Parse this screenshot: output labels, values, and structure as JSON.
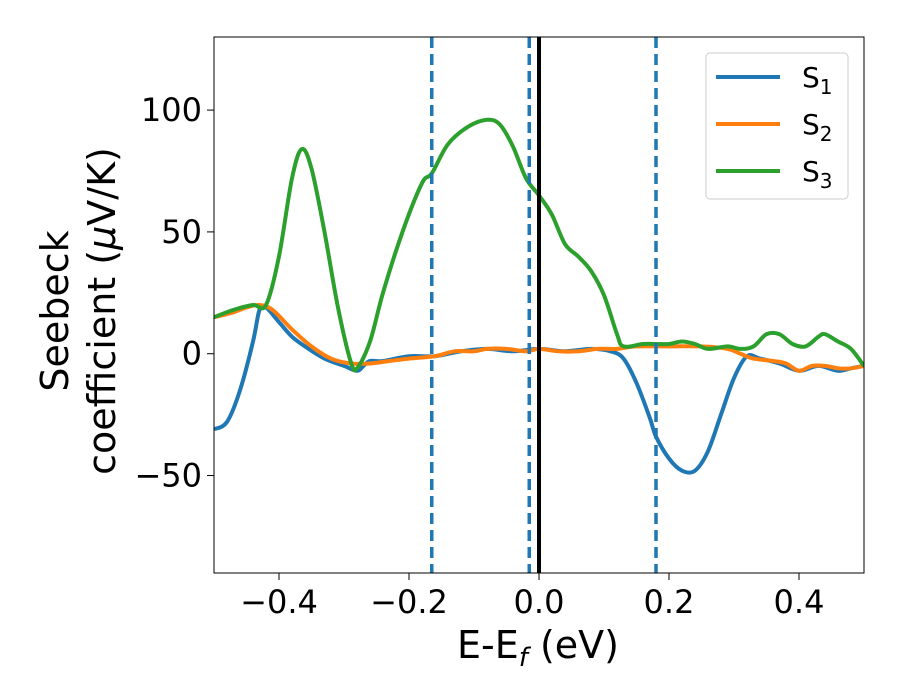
{
  "chart_data": {
    "type": "line",
    "xlabel": "E-E",
    "xlabel_sub": "f",
    "xlabel_unit": "(eV)",
    "ylabel_line1": "Seebeck",
    "ylabel_line2_prefix": "coefficient  (",
    "ylabel_mu": "μ",
    "ylabel_line2_suffix": "V/K)",
    "xlim": [
      -0.5,
      0.5
    ],
    "ylim": [
      -90,
      130
    ],
    "xticks": [
      -0.4,
      -0.2,
      0.0,
      0.2,
      0.4
    ],
    "xtick_labels": [
      "−0.4",
      "−0.2",
      "0.0",
      "0.2",
      "0.4"
    ],
    "yticks": [
      -50,
      0,
      50,
      100
    ],
    "ytick_labels": [
      "−50",
      "0",
      "50",
      "100"
    ],
    "grid": false,
    "legend_position": "top-right",
    "vertical_lines": [
      {
        "x": -0.165,
        "style": "dashed",
        "color": "#1f77b4"
      },
      {
        "x": -0.015,
        "style": "dashed",
        "color": "#1f77b4"
      },
      {
        "x": 0.18,
        "style": "dashed",
        "color": "#1f77b4"
      },
      {
        "x": 0.0,
        "style": "solid",
        "color": "#000000"
      }
    ],
    "series": [
      {
        "name": "S",
        "sub": "1",
        "color": "#1f77b4",
        "points": [
          [
            -0.5,
            -31
          ],
          [
            -0.48,
            -28
          ],
          [
            -0.46,
            -15
          ],
          [
            -0.44,
            5
          ],
          [
            -0.43,
            18
          ],
          [
            -0.42,
            19
          ],
          [
            -0.4,
            13
          ],
          [
            -0.38,
            7
          ],
          [
            -0.36,
            3
          ],
          [
            -0.33,
            -2
          ],
          [
            -0.3,
            -5
          ],
          [
            -0.28,
            -7
          ],
          [
            -0.27,
            -5
          ],
          [
            -0.26,
            -3
          ],
          [
            -0.24,
            -3
          ],
          [
            -0.2,
            -1
          ],
          [
            -0.16,
            -1
          ],
          [
            -0.12,
            1
          ],
          [
            -0.08,
            2
          ],
          [
            -0.04,
            1
          ],
          [
            0.0,
            2
          ],
          [
            0.04,
            1
          ],
          [
            0.08,
            2
          ],
          [
            0.11,
            1
          ],
          [
            0.13,
            -2
          ],
          [
            0.15,
            -12
          ],
          [
            0.17,
            -26
          ],
          [
            0.18,
            -34
          ],
          [
            0.2,
            -43
          ],
          [
            0.22,
            -48
          ],
          [
            0.24,
            -48
          ],
          [
            0.26,
            -40
          ],
          [
            0.28,
            -25
          ],
          [
            0.3,
            -10
          ],
          [
            0.32,
            -1
          ],
          [
            0.34,
            -2
          ],
          [
            0.37,
            -4
          ],
          [
            0.4,
            -7
          ],
          [
            0.43,
            -5
          ],
          [
            0.46,
            -7
          ],
          [
            0.48,
            -6
          ],
          [
            0.5,
            -5
          ]
        ]
      },
      {
        "name": "S",
        "sub": "2",
        "color": "#ff7f0e",
        "points": [
          [
            -0.5,
            15
          ],
          [
            -0.47,
            17
          ],
          [
            -0.45,
            19
          ],
          [
            -0.43,
            20
          ],
          [
            -0.41,
            18
          ],
          [
            -0.38,
            10
          ],
          [
            -0.35,
            3
          ],
          [
            -0.32,
            -2
          ],
          [
            -0.29,
            -4
          ],
          [
            -0.26,
            -4
          ],
          [
            -0.23,
            -3
          ],
          [
            -0.2,
            -2
          ],
          [
            -0.16,
            -1
          ],
          [
            -0.13,
            1
          ],
          [
            -0.1,
            1
          ],
          [
            -0.08,
            2
          ],
          [
            -0.05,
            2
          ],
          [
            -0.02,
            1
          ],
          [
            0.0,
            2
          ],
          [
            0.03,
            1
          ],
          [
            0.06,
            1
          ],
          [
            0.09,
            2
          ],
          [
            0.12,
            2
          ],
          [
            0.15,
            3
          ],
          [
            0.2,
            3
          ],
          [
            0.25,
            3
          ],
          [
            0.29,
            2
          ],
          [
            0.31,
            0
          ],
          [
            0.33,
            -2
          ],
          [
            0.36,
            -3
          ],
          [
            0.38,
            -4
          ],
          [
            0.4,
            -7
          ],
          [
            0.42,
            -5
          ],
          [
            0.44,
            -5
          ],
          [
            0.46,
            -6
          ],
          [
            0.48,
            -6
          ],
          [
            0.5,
            -5
          ]
        ]
      },
      {
        "name": "S",
        "sub": "3",
        "color": "#2ca02c",
        "points": [
          [
            -0.5,
            15
          ],
          [
            -0.47,
            18
          ],
          [
            -0.44,
            20
          ],
          [
            -0.42,
            20
          ],
          [
            -0.4,
            40
          ],
          [
            -0.38,
            72
          ],
          [
            -0.365,
            84
          ],
          [
            -0.35,
            76
          ],
          [
            -0.33,
            50
          ],
          [
            -0.31,
            20
          ],
          [
            -0.29,
            -3
          ],
          [
            -0.28,
            -6
          ],
          [
            -0.26,
            5
          ],
          [
            -0.24,
            25
          ],
          [
            -0.21,
            50
          ],
          [
            -0.18,
            70
          ],
          [
            -0.165,
            74
          ],
          [
            -0.14,
            86
          ],
          [
            -0.11,
            93
          ],
          [
            -0.08,
            96
          ],
          [
            -0.06,
            94
          ],
          [
            -0.04,
            85
          ],
          [
            -0.02,
            72
          ],
          [
            0.0,
            65
          ],
          [
            0.02,
            57
          ],
          [
            0.04,
            45
          ],
          [
            0.06,
            40
          ],
          [
            0.08,
            34
          ],
          [
            0.1,
            24
          ],
          [
            0.12,
            8
          ],
          [
            0.13,
            3
          ],
          [
            0.16,
            4
          ],
          [
            0.18,
            4
          ],
          [
            0.2,
            4
          ],
          [
            0.22,
            5
          ],
          [
            0.24,
            4
          ],
          [
            0.26,
            2
          ],
          [
            0.29,
            3
          ],
          [
            0.31,
            2
          ],
          [
            0.33,
            3
          ],
          [
            0.35,
            8
          ],
          [
            0.37,
            8
          ],
          [
            0.39,
            4
          ],
          [
            0.41,
            3
          ],
          [
            0.43,
            7
          ],
          [
            0.44,
            8
          ],
          [
            0.46,
            5
          ],
          [
            0.48,
            2
          ],
          [
            0.5,
            -5
          ]
        ]
      }
    ]
  }
}
